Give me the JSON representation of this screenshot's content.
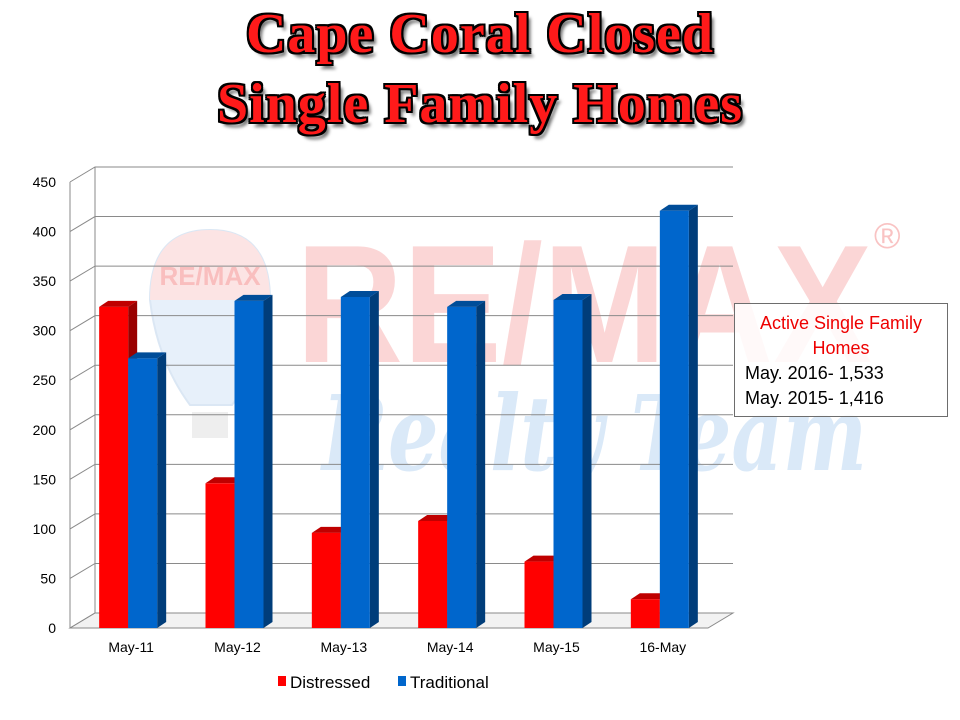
{
  "title": {
    "line1": "Cape Coral Closed",
    "line2": "Single Family Homes"
  },
  "watermark": {
    "brand": "RE/MAX",
    "registered_mark": "®",
    "tagline": "Realty Team",
    "balloon_label": "RE/MAX"
  },
  "info_box": {
    "heading": "Active Single Family Homes",
    "line1": "May. 2016- 1,533",
    "line2": "May. 2015- 1,416"
  },
  "colors": {
    "distressed": "#ff0000",
    "traditional": "#0066cc",
    "watermark_red": "#f7b4b4",
    "watermark_blue": "#bcd7f2"
  },
  "chart_data": {
    "type": "bar",
    "categories": [
      "May-11",
      "May-12",
      "May-13",
      "May-14",
      "May-15",
      "16-May"
    ],
    "series": [
      {
        "name": "Distressed",
        "values": [
          324,
          146,
          96,
          108,
          67,
          29
        ]
      },
      {
        "name": "Traditional",
        "values": [
          272,
          330,
          334,
          324,
          331,
          421
        ]
      }
    ],
    "title": "Cape Coral Closed Single Family Homes",
    "xlabel": "",
    "ylabel": "",
    "ylim": [
      0,
      450
    ],
    "yticks": [
      0,
      50,
      100,
      150,
      200,
      250,
      300,
      350,
      400,
      450
    ],
    "grid": true,
    "legend": "bottom"
  }
}
